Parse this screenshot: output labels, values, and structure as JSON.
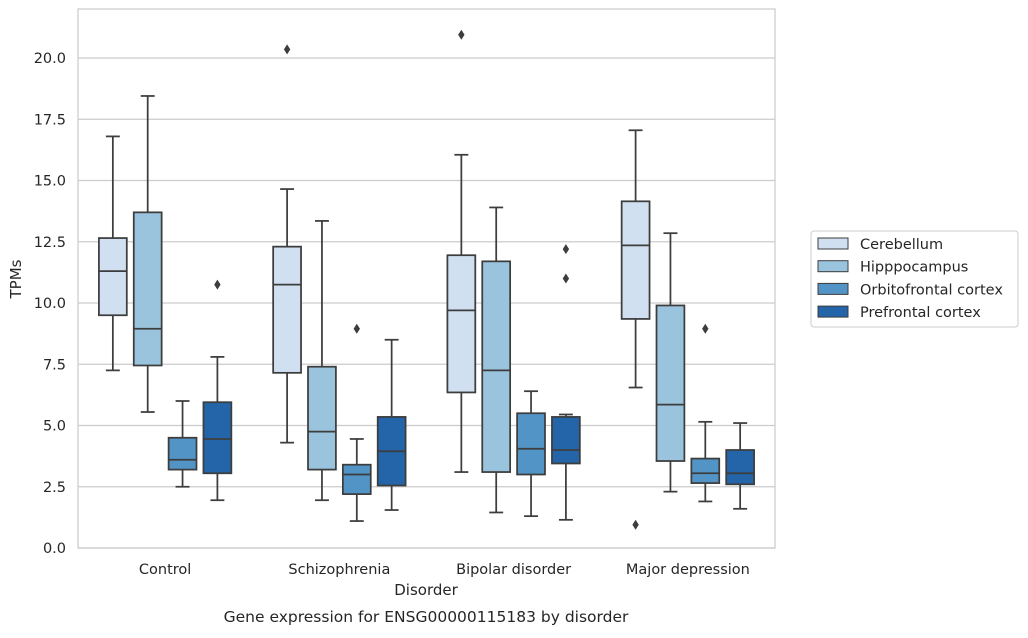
{
  "chart_data": {
    "type": "boxplot",
    "title": "Gene expression for ENSG00000115183 by disorder",
    "xlabel": "Disorder",
    "ylabel": "TPMs",
    "ylim": [
      0,
      22
    ],
    "yticks": [
      0.0,
      2.5,
      5.0,
      7.5,
      10.0,
      12.5,
      15.0,
      17.5,
      20.0
    ],
    "ytick_labels": [
      "0.0",
      "2.5",
      "5.0",
      "7.5",
      "10.0",
      "12.5",
      "15.0",
      "17.5",
      "20.0"
    ],
    "grid": true,
    "legend_position": "right",
    "categories": [
      "Control",
      "Schizophrenia",
      "Bipolar disorder",
      "Major depression"
    ],
    "series": [
      {
        "name": "Cerebellum",
        "color": "#d0e0f1",
        "boxes": [
          {
            "whisker_low": 7.25,
            "q1": 9.5,
            "median": 11.3,
            "q3": 12.65,
            "whisker_high": 16.8,
            "outliers": []
          },
          {
            "whisker_low": 4.3,
            "q1": 7.15,
            "median": 10.75,
            "q3": 12.3,
            "whisker_high": 14.65,
            "outliers": [
              20.35
            ]
          },
          {
            "whisker_low": 3.1,
            "q1": 6.35,
            "median": 9.7,
            "q3": 11.95,
            "whisker_high": 16.05,
            "outliers": [
              20.95
            ]
          },
          {
            "whisker_low": 6.55,
            "q1": 9.35,
            "median": 12.35,
            "q3": 14.15,
            "whisker_high": 17.05,
            "outliers": [
              0.95
            ]
          }
        ]
      },
      {
        "name": "Hipppocampus",
        "color": "#9ac4dd",
        "boxes": [
          {
            "whisker_low": 5.55,
            "q1": 7.45,
            "median": 8.95,
            "q3": 13.7,
            "whisker_high": 18.45,
            "outliers": []
          },
          {
            "whisker_low": 1.95,
            "q1": 3.2,
            "median": 4.75,
            "q3": 7.4,
            "whisker_high": 13.35,
            "outliers": []
          },
          {
            "whisker_low": 1.45,
            "q1": 3.1,
            "median": 7.25,
            "q3": 11.7,
            "whisker_high": 13.9,
            "outliers": []
          },
          {
            "whisker_low": 2.3,
            "q1": 3.55,
            "median": 5.85,
            "q3": 9.9,
            "whisker_high": 12.85,
            "outliers": []
          }
        ]
      },
      {
        "name": "Orbitofrontal cortex",
        "color": "#5294c6",
        "boxes": [
          {
            "whisker_low": 2.5,
            "q1": 3.2,
            "median": 3.6,
            "q3": 4.5,
            "whisker_high": 6.0,
            "outliers": []
          },
          {
            "whisker_low": 1.1,
            "q1": 2.2,
            "median": 3.0,
            "q3": 3.4,
            "whisker_high": 4.45,
            "outliers": [
              8.95
            ]
          },
          {
            "whisker_low": 1.3,
            "q1": 3.0,
            "median": 4.05,
            "q3": 5.5,
            "whisker_high": 6.4,
            "outliers": []
          },
          {
            "whisker_low": 1.9,
            "q1": 2.65,
            "median": 3.05,
            "q3": 3.65,
            "whisker_high": 5.15,
            "outliers": [
              8.95
            ]
          }
        ]
      },
      {
        "name": "Prefrontal cortex",
        "color": "#2464a8",
        "boxes": [
          {
            "whisker_low": 1.95,
            "q1": 3.05,
            "median": 4.45,
            "q3": 5.95,
            "whisker_high": 7.8,
            "outliers": [
              10.75
            ]
          },
          {
            "whisker_low": 1.55,
            "q1": 2.55,
            "median": 3.95,
            "q3": 5.35,
            "whisker_high": 8.5,
            "outliers": []
          },
          {
            "whisker_low": 1.15,
            "q1": 3.45,
            "median": 4.0,
            "q3": 5.35,
            "whisker_high": 5.45,
            "outliers": [
              11.0,
              12.2
            ]
          },
          {
            "whisker_low": 1.6,
            "q1": 2.6,
            "median": 3.05,
            "q3": 4.0,
            "whisker_high": 5.1,
            "outliers": []
          }
        ]
      }
    ]
  }
}
